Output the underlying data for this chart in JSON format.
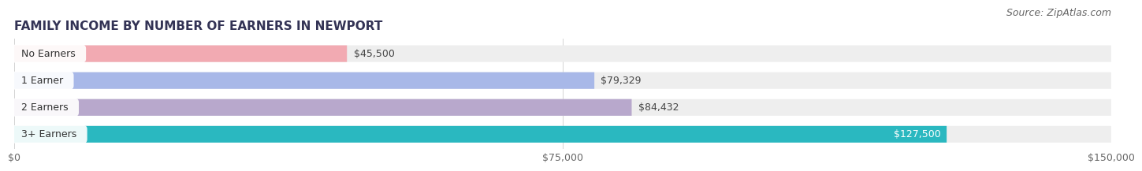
{
  "title": "FAMILY INCOME BY NUMBER OF EARNERS IN NEWPORT",
  "source": "Source: ZipAtlas.com",
  "categories": [
    "No Earners",
    "1 Earner",
    "2 Earners",
    "3+ Earners"
  ],
  "values": [
    45500,
    79329,
    84432,
    127500
  ],
  "labels": [
    "$45,500",
    "$79,329",
    "$84,432",
    "$127,500"
  ],
  "bar_colors": [
    "#f2aab2",
    "#a8b8e8",
    "#b8a8cc",
    "#2ab8c0"
  ],
  "label_colors": [
    "#555555",
    "#555555",
    "#555555",
    "#ffffff"
  ],
  "xlim": [
    0,
    150000
  ],
  "xticks": [
    0,
    75000,
    150000
  ],
  "xtick_labels": [
    "$0",
    "$75,000",
    "$150,000"
  ],
  "title_fontsize": 11,
  "source_fontsize": 9,
  "bar_label_fontsize": 9,
  "tick_fontsize": 9,
  "category_fontsize": 9,
  "background_color": "#ffffff",
  "bar_bg_color": "#eeeeee",
  "bar_height": 0.62
}
